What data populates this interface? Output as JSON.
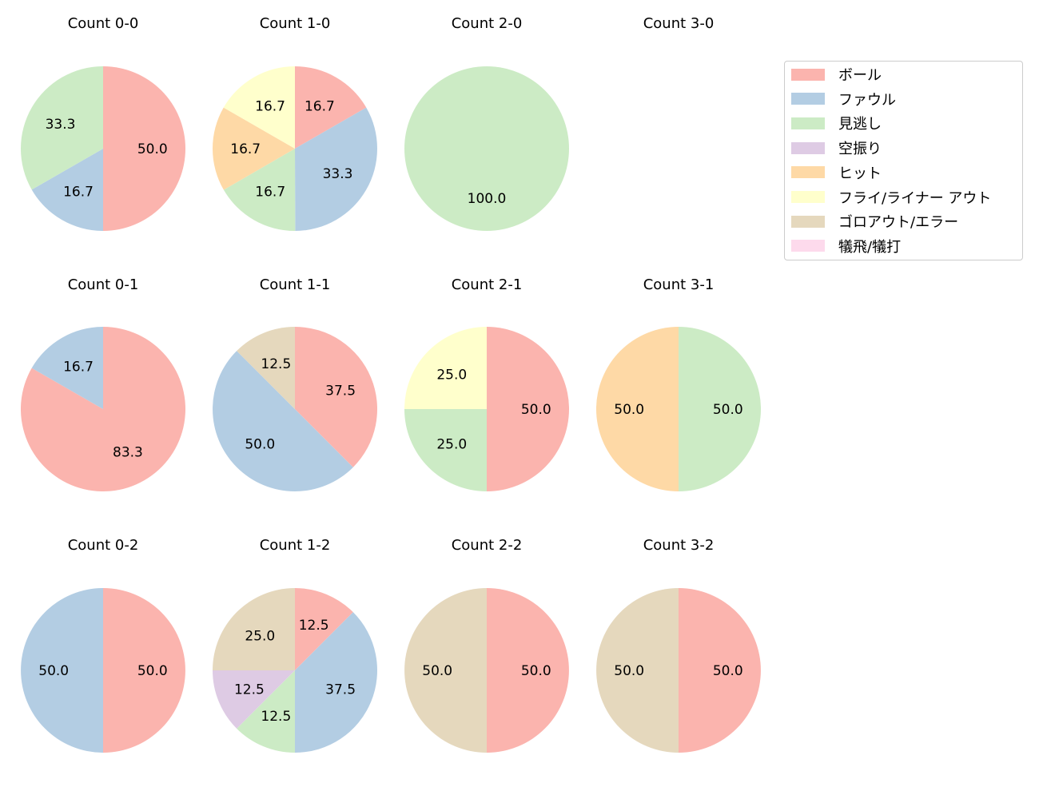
{
  "chart_data": {
    "type": "pie",
    "categories": [
      "ボール",
      "ファウル",
      "見逃し",
      "空振り",
      "ヒット",
      "フライ/ライナー アウト",
      "ゴロアウト/エラー",
      "犠飛/犠打"
    ],
    "colors": [
      "#fbb4ae",
      "#b3cde3",
      "#ccebc5",
      "#decbe4",
      "#fed9a6",
      "#ffffcc",
      "#e5d8bd",
      "#fddaec"
    ],
    "start_angle": "top",
    "direction": "clockwise",
    "legend_position": "top-right",
    "pies": [
      {
        "title": "Count 0-0",
        "values": [
          50.0,
          16.7,
          33.3,
          0,
          0,
          0,
          0,
          0
        ]
      },
      {
        "title": "Count 1-0",
        "values": [
          16.7,
          33.3,
          16.7,
          0,
          16.7,
          16.7,
          0,
          0
        ]
      },
      {
        "title": "Count 2-0",
        "values": [
          0,
          0,
          100.0,
          0,
          0,
          0,
          0,
          0
        ]
      },
      {
        "title": "Count 3-0",
        "values": [
          0,
          0,
          0,
          0,
          0,
          0,
          0,
          0
        ]
      },
      {
        "title": "Count 0-1",
        "values": [
          83.3,
          16.7,
          0,
          0,
          0,
          0,
          0,
          0
        ]
      },
      {
        "title": "Count 1-1",
        "values": [
          37.5,
          50.0,
          0,
          0,
          0,
          0,
          12.5,
          0
        ]
      },
      {
        "title": "Count 2-1",
        "values": [
          50.0,
          0,
          25.0,
          0,
          0,
          25.0,
          0,
          0
        ]
      },
      {
        "title": "Count 3-1",
        "values": [
          0,
          0,
          50.0,
          0,
          50.0,
          0,
          0,
          0
        ]
      },
      {
        "title": "Count 0-2",
        "values": [
          50.0,
          50.0,
          0,
          0,
          0,
          0,
          0,
          0
        ]
      },
      {
        "title": "Count 1-2",
        "values": [
          12.5,
          37.5,
          12.5,
          12.5,
          0,
          0,
          25.0,
          0
        ]
      },
      {
        "title": "Count 2-2",
        "values": [
          50.0,
          0,
          0,
          0,
          0,
          0,
          50.0,
          0
        ]
      },
      {
        "title": "Count 3-2",
        "values": [
          50.0,
          0,
          0,
          0,
          0,
          0,
          50.0,
          0
        ]
      }
    ]
  }
}
